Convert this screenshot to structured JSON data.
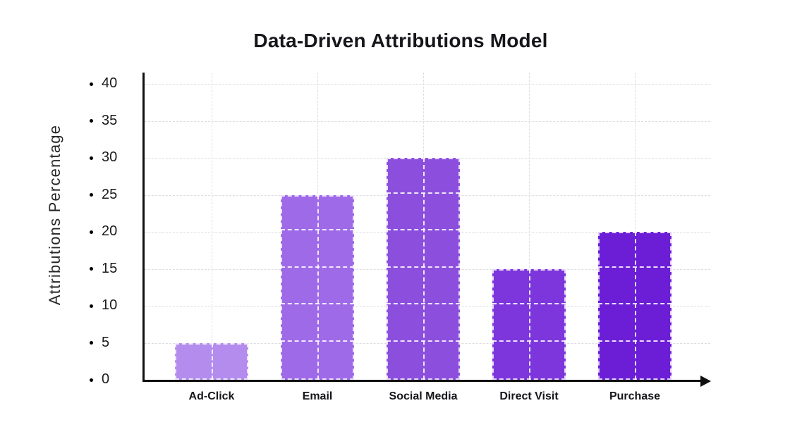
{
  "chart_data": {
    "type": "bar",
    "title": "Data-Driven Attributions Model",
    "xlabel": "",
    "ylabel": "Attributions Percentage",
    "categories": [
      "Ad-Click",
      "Email",
      "Social Media",
      "Direct Visit",
      "Purchase"
    ],
    "values": [
      5,
      25,
      30,
      15,
      20
    ],
    "bar_colors": [
      "#b48cee",
      "#9f6ae8",
      "#8c4fdd",
      "#7d36dc",
      "#6c1ed6"
    ],
    "y_ticks": [
      0,
      5,
      10,
      15,
      20,
      25,
      30,
      35,
      40
    ],
    "ylim": [
      0,
      41.5
    ],
    "grid": "dotted horizontal at every tick, dotted vertical at bar centers",
    "legend_position": "none",
    "axis_arrow": "right end of x-axis"
  },
  "colors": {
    "background": "#ffffff",
    "axis": "#101010",
    "gridline": "#dddde3",
    "bar_overlay_grid": "#ffffff",
    "title_text": "#16151a",
    "tick_text": "#1b1b1b",
    "y_axis_title_text": "#272727",
    "tick_bullet": "#000000"
  }
}
